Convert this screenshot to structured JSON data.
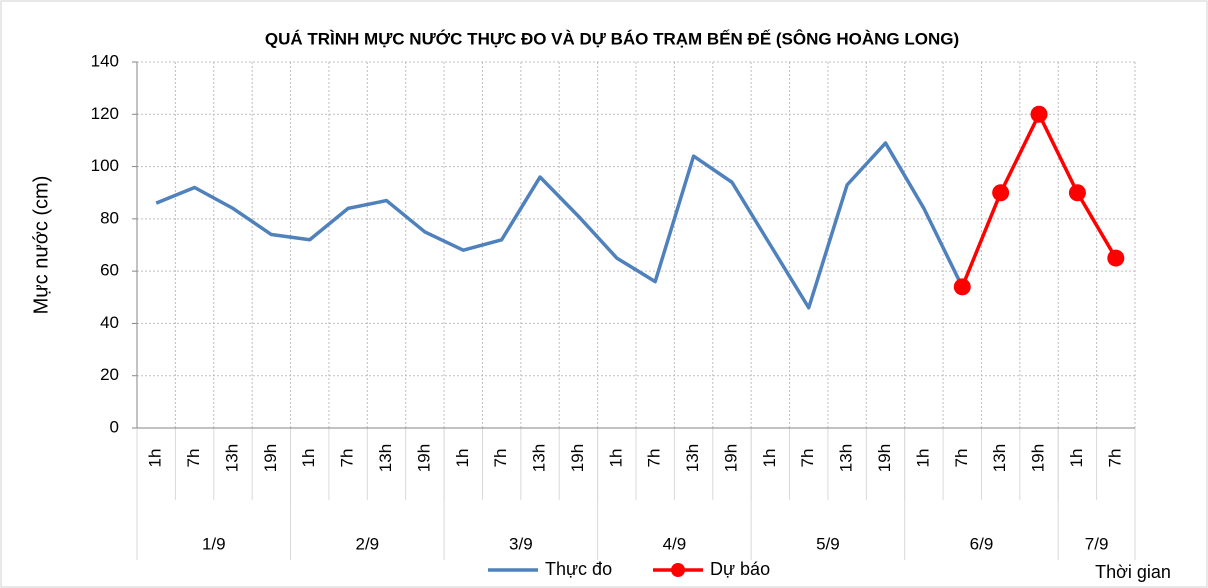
{
  "chart_data": {
    "type": "line",
    "title": "QUÁ TRÌNH MỰC NƯỚC THỰC ĐO VÀ DỰ BÁO TRẠM BẾN ĐẾ (SÔNG HOÀNG LONG)",
    "y_label": "Mực nước (cm)",
    "x_label": "Thời gian",
    "groups": [
      {
        "label": "1/9",
        "categories": [
          "1h",
          "7h",
          "13h",
          "19h"
        ]
      },
      {
        "label": "2/9",
        "categories": [
          "1h",
          "7h",
          "13h",
          "19h"
        ]
      },
      {
        "label": "3/9",
        "categories": [
          "1h",
          "7h",
          "13h",
          "19h"
        ]
      },
      {
        "label": "4/9",
        "categories": [
          "1h",
          "7h",
          "13h",
          "19h"
        ]
      },
      {
        "label": "5/9",
        "categories": [
          "1h",
          "7h",
          "13h",
          "19h"
        ]
      },
      {
        "label": "6/9",
        "categories": [
          "1h",
          "7h",
          "13h",
          "19h"
        ]
      },
      {
        "label": "7/9",
        "categories": [
          "1h",
          "7h"
        ]
      }
    ],
    "series": [
      {
        "name": "Thực đo",
        "color": "#4f81bd",
        "marker": false,
        "values": [
          86,
          92,
          84,
          74,
          72,
          84,
          87,
          75,
          68,
          72,
          96,
          81,
          65,
          56,
          104,
          94,
          70,
          46,
          93,
          109,
          84,
          54,
          null,
          null,
          null,
          null
        ]
      },
      {
        "name": "Dự báo",
        "color": "#ff0000",
        "marker": true,
        "values": [
          null,
          null,
          null,
          null,
          null,
          null,
          null,
          null,
          null,
          null,
          null,
          null,
          null,
          null,
          null,
          null,
          null,
          null,
          null,
          null,
          null,
          54,
          90,
          120,
          90,
          65
        ]
      }
    ],
    "ylim": [
      0,
      140
    ],
    "yticks": [
      0,
      20,
      40,
      60,
      80,
      100,
      120,
      140
    ],
    "grid": true
  }
}
